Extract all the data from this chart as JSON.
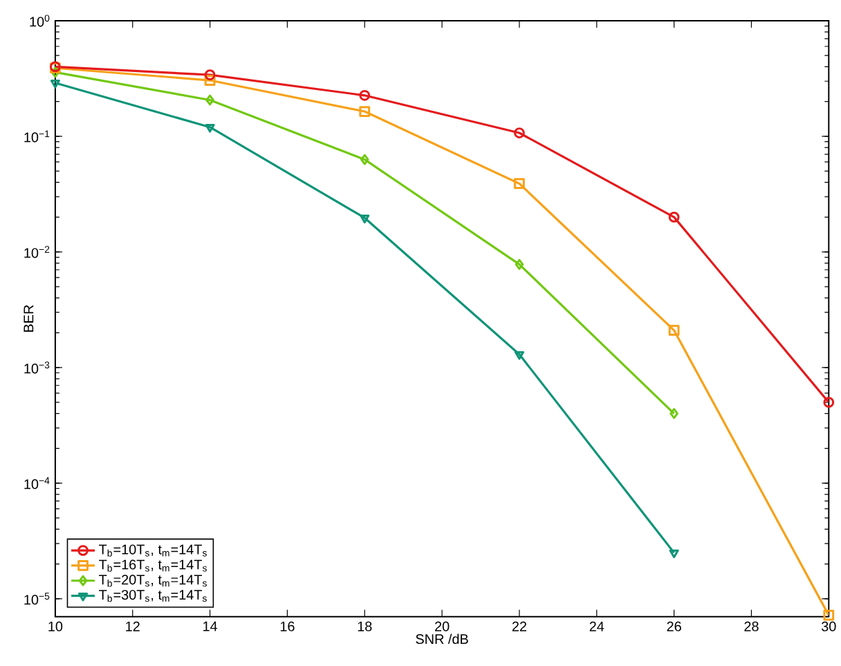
{
  "chart_data": {
    "type": "line",
    "xlabel": "SNR /dB",
    "ylabel": "BER",
    "log": "y",
    "legend": "bottom left",
    "line_style": "solid",
    "grid": false,
    "xlim": [
      10,
      30
    ],
    "ylim": [
      7e-06,
      1
    ],
    "xticks": [
      10,
      12,
      14,
      16,
      18,
      20,
      22,
      24,
      26,
      28,
      30
    ],
    "yticks": [
      {
        "value": 1e-05,
        "label": "10$^{−5}$"
      },
      {
        "value": 0.0001,
        "label": "10$^{−4}$"
      },
      {
        "value": 0.001,
        "label": "10$^{−3}$"
      },
      {
        "value": 0.01,
        "label": "10$^{−2}$"
      },
      {
        "value": 0.1,
        "label": "10$^{−1}$"
      },
      {
        "value": 1,
        "label": "10$^{0}$"
      }
    ],
    "x": [
      10,
      14,
      18,
      22,
      26,
      30
    ],
    "series": [
      {
        "name": "T$_{b}$=10T$_{s}$, t$_{m}$=14T$_{s}$",
        "color": "#e41a1c",
        "marker": "circle",
        "values": [
          0.4,
          0.34,
          0.226,
          0.107,
          0.02,
          0.0005
        ]
      },
      {
        "name": "T$_{b}$=16T$_{s}$, t$_{m}$=14T$_{s}$",
        "color": "#f7a11a",
        "marker": "square",
        "values": [
          0.39,
          0.305,
          0.164,
          0.039,
          0.0021,
          7.2e-06
        ]
      },
      {
        "name": "T$_{b}$=20T$_{s}$, t$_{m}$=14T$_{s}$",
        "color": "#72c812",
        "marker": "diamond",
        "values": [
          0.358,
          0.206,
          0.063,
          0.0078,
          0.0004,
          null
        ]
      },
      {
        "name": "T$_{b}$=30T$_{s}$, t$_{m}$=14T$_{s}$",
        "color": "#0e9478",
        "marker": "triangle",
        "values": [
          0.29,
          0.12,
          0.0197,
          0.0013,
          2.5e-05,
          null
        ]
      }
    ]
  }
}
